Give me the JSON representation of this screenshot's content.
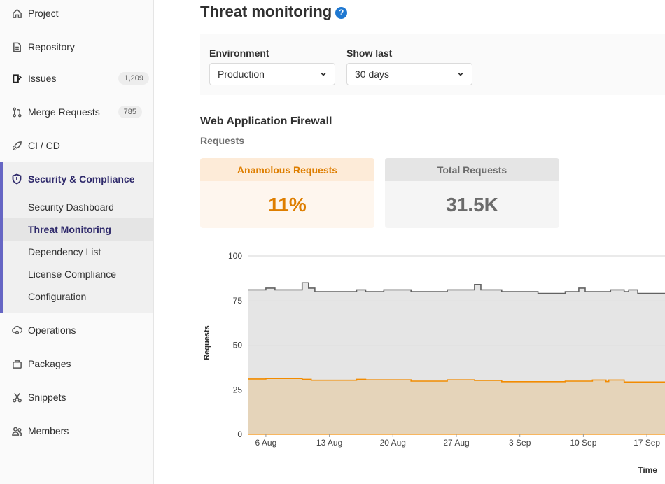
{
  "sidebar": {
    "items": [
      {
        "label": "Project",
        "icon": "home-icon"
      },
      {
        "label": "Repository",
        "icon": "doc-icon"
      },
      {
        "label": "Issues",
        "icon": "issues-icon",
        "badge": "1,209"
      },
      {
        "label": "Merge Requests",
        "icon": "merge-request-icon",
        "badge": "785"
      },
      {
        "label": "CI / CD",
        "icon": "rocket-icon"
      },
      {
        "label": "Security & Compliance",
        "icon": "shield-icon"
      },
      {
        "label": "Operations",
        "icon": "cloud-gear-icon"
      },
      {
        "label": "Packages",
        "icon": "package-icon"
      },
      {
        "label": "Snippets",
        "icon": "scissors-icon"
      },
      {
        "label": "Members",
        "icon": "users-icon"
      }
    ],
    "security_subitems": [
      "Security Dashboard",
      "Threat Monitoring",
      "Dependency List",
      "License Compliance",
      "Configuration"
    ]
  },
  "main": {
    "title": "Threat monitoring",
    "help": "?",
    "filters": {
      "environment_label": "Environment",
      "environment_value": "Production",
      "show_last_label": "Show last",
      "show_last_value": "30 days"
    },
    "section_title": "Web Application Firewall",
    "sub_title": "Requests",
    "stats": {
      "anomalous_label": "Anamolous Requests",
      "anomalous_value": "11%",
      "total_label": "Total Requests",
      "total_value": "31.5K"
    }
  },
  "colors": {
    "accent": "#6666c4",
    "active_text": "#2f2a6b",
    "anomalous": "#de7e00",
    "total": "#6b6b6b"
  },
  "chart_data": {
    "type": "area",
    "ylabel": "Requests",
    "xlabel": "Time",
    "ylim": [
      0,
      100
    ],
    "yticks": [
      "0",
      "25",
      "50",
      "75",
      "100"
    ],
    "x_tick_labels": [
      "6 Aug",
      "13 Aug",
      "20 Aug",
      "27 Aug",
      "3 Sep",
      "10 Sep",
      "17 Sep"
    ],
    "x_tick_days": [
      2,
      9,
      16,
      23,
      30,
      37,
      44
    ],
    "x_range_days": [
      0,
      46
    ],
    "grid": true,
    "series": [
      {
        "color": "#626262",
        "fill": "#e3e3e3",
        "points": [
          [
            0,
            81
          ],
          [
            2,
            81
          ],
          [
            2,
            82
          ],
          [
            3,
            82
          ],
          [
            3,
            81
          ],
          [
            6,
            81
          ],
          [
            6,
            85
          ],
          [
            6.7,
            85
          ],
          [
            6.7,
            82
          ],
          [
            7.4,
            82
          ],
          [
            7.4,
            80
          ],
          [
            12,
            80
          ],
          [
            12,
            81
          ],
          [
            13,
            81
          ],
          [
            13,
            80
          ],
          [
            15,
            80
          ],
          [
            15,
            81
          ],
          [
            18,
            81
          ],
          [
            18,
            80
          ],
          [
            22,
            80
          ],
          [
            22,
            81
          ],
          [
            25,
            81
          ],
          [
            25,
            84
          ],
          [
            25.7,
            84
          ],
          [
            25.7,
            81
          ],
          [
            28,
            81
          ],
          [
            28,
            80
          ],
          [
            32,
            80
          ],
          [
            32,
            79
          ],
          [
            35,
            79
          ],
          [
            35,
            80
          ],
          [
            36.5,
            80
          ],
          [
            36.5,
            82
          ],
          [
            37.2,
            82
          ],
          [
            37.2,
            80
          ],
          [
            40,
            80
          ],
          [
            40,
            81
          ],
          [
            41.5,
            81
          ],
          [
            41.5,
            80
          ],
          [
            42,
            80
          ],
          [
            42,
            81
          ],
          [
            43,
            81
          ],
          [
            43,
            79
          ],
          [
            46,
            79
          ]
        ]
      },
      {
        "color": "#f28b00",
        "fill": "#e5d2b6",
        "points": [
          [
            0,
            31
          ],
          [
            2,
            31
          ],
          [
            2,
            31.3
          ],
          [
            6,
            31.3
          ],
          [
            6,
            30.8
          ],
          [
            7,
            30.8
          ],
          [
            7,
            30.3
          ],
          [
            12,
            30.3
          ],
          [
            12,
            30.8
          ],
          [
            13,
            30.8
          ],
          [
            13,
            30.5
          ],
          [
            18,
            30.5
          ],
          [
            18,
            29.8
          ],
          [
            22,
            29.8
          ],
          [
            22,
            30.5
          ],
          [
            25,
            30.5
          ],
          [
            25,
            30.2
          ],
          [
            28,
            30.2
          ],
          [
            28,
            29.5
          ],
          [
            35,
            29.5
          ],
          [
            35,
            29.8
          ],
          [
            38,
            29.8
          ],
          [
            38,
            30.4
          ],
          [
            39.5,
            30.4
          ],
          [
            39.5,
            29.6
          ],
          [
            39.8,
            29.6
          ],
          [
            39.8,
            30.4
          ],
          [
            41.5,
            30.4
          ],
          [
            41.5,
            29.3
          ],
          [
            46,
            29.3
          ]
        ]
      }
    ]
  }
}
